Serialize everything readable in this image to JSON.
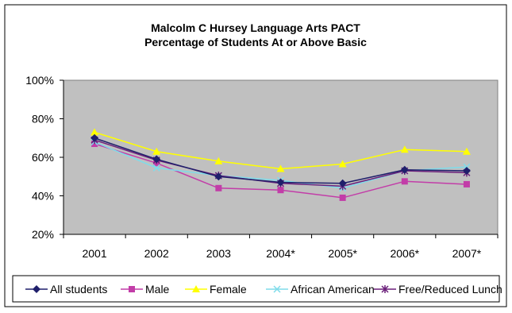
{
  "colors": {
    "all_students": "#1f1f6b",
    "male": "#c23da8",
    "female": "#ffff00",
    "african_american": "#7fdcea",
    "free_reduced_lunch": "#6b1f7a",
    "plot_background": "#c0c0c0"
  },
  "chart_data": {
    "type": "line",
    "title": "Malcolm C Hursey Language Arts PACT",
    "subtitle": "Percentage of Students At or Above Basic",
    "categories": [
      "2001",
      "2002",
      "2003",
      "2004*",
      "2005*",
      "2006*",
      "2007*"
    ],
    "ylim": [
      20,
      100
    ],
    "y_ticks": [
      "20%",
      "40%",
      "60%",
      "80%",
      "100%"
    ],
    "grid": false,
    "legend_position": "bottom",
    "series": [
      {
        "name": "All students",
        "marker": "diamond",
        "values": [
          70,
          59,
          50,
          47,
          46.5,
          53.5,
          53
        ]
      },
      {
        "name": "Male",
        "marker": "square",
        "values": [
          67,
          57,
          44,
          43,
          39,
          47.5,
          46
        ]
      },
      {
        "name": "Female",
        "marker": "triangle",
        "values": [
          73,
          63,
          58,
          54,
          56.5,
          64,
          63
        ]
      },
      {
        "name": "African American",
        "marker": "x",
        "values": [
          68,
          54.5,
          50.5,
          48,
          44,
          53,
          55
        ]
      },
      {
        "name": "Free/Reduced Lunch",
        "marker": "star",
        "values": [
          69,
          58.5,
          50.5,
          46.5,
          45,
          53,
          52
        ]
      }
    ]
  }
}
